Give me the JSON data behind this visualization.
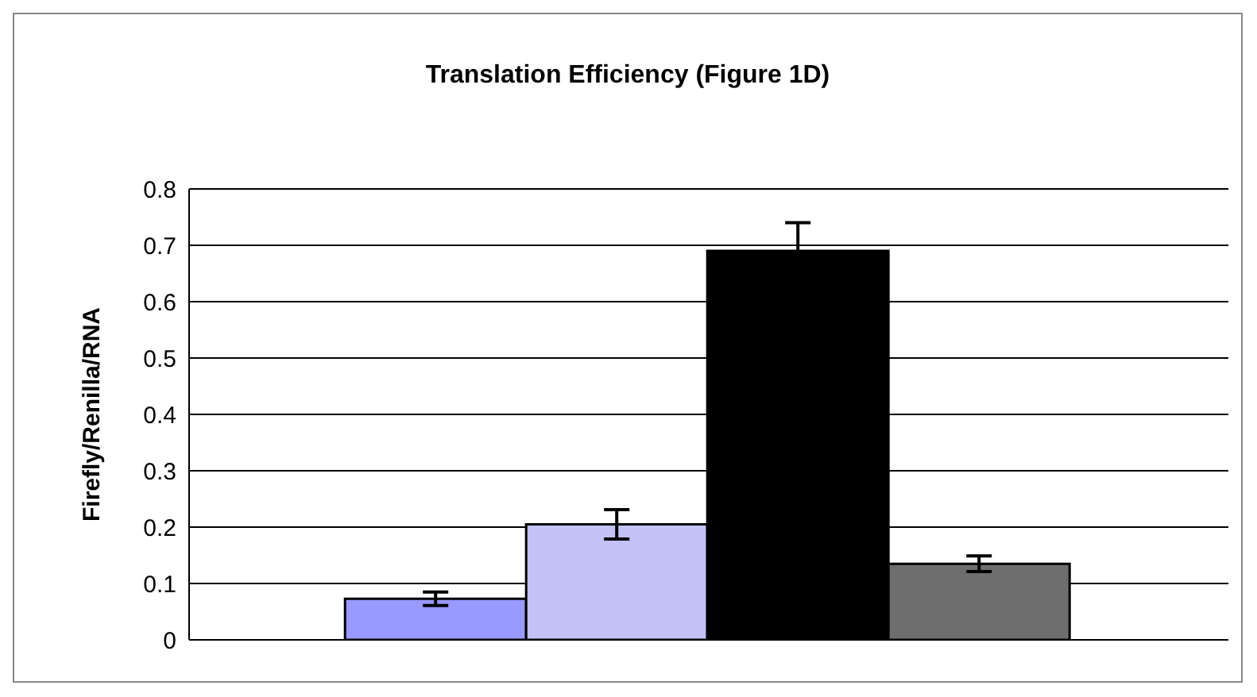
{
  "chart_data": {
    "type": "bar",
    "title": "Translation Efficiency (Figure 1D)",
    "ylabel": "Firefly/Renilla/RNA",
    "categories": [
      null
    ],
    "series": [
      {
        "color": "#9999ff",
        "values": [
          0.073
        ],
        "errors": [
          0.012
        ]
      },
      {
        "color": "#c2c2f7",
        "values": [
          0.205
        ],
        "errors": [
          0.026
        ]
      },
      {
        "color": "#000000",
        "values": [
          0.69
        ],
        "errors": [
          0.05
        ]
      },
      {
        "color": "#6e6e6e",
        "values": [
          0.135
        ],
        "errors": [
          0.014
        ]
      }
    ],
    "ylim": [
      0,
      0.8
    ],
    "yticks": [
      0,
      0.1,
      0.2,
      0.3,
      0.4,
      0.5,
      0.6,
      0.7,
      0.8
    ],
    "grid": "y",
    "legend": false
  }
}
